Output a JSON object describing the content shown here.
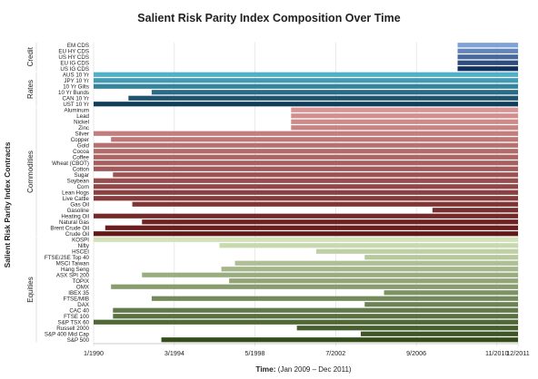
{
  "chart_data": {
    "type": "bar",
    "orientation": "horizontal-timeline",
    "title": "Salient Risk Parity Index Composition Over Time",
    "ylabel": "Salient Risk Parity Index Contracts",
    "xlabel_bold": "Time:",
    "xlabel_rest": " (Jan 2009 – Dec 2011)",
    "x_ticks": [
      "1/1990",
      "3/1994",
      "5/1998",
      "7/2002",
      "9/2006",
      "11/2010",
      "12/2011"
    ],
    "x_tick_values": [
      1990.0,
      1994.17,
      1998.33,
      2002.5,
      2006.67,
      2010.83,
      2011.92
    ],
    "xlim": [
      1990.0,
      2011.92
    ],
    "groups": [
      {
        "name": "Credit",
        "color_light": "#7ea1d8",
        "color_dark": "#13315e",
        "items": [
          {
            "label": "EM CDS",
            "start": 2008.8
          },
          {
            "label": "EU HY CDS",
            "start": 2008.8
          },
          {
            "label": "US HY CDS",
            "start": 2008.8
          },
          {
            "label": "EU IG CDS",
            "start": 2008.8
          },
          {
            "label": "US IG CDS",
            "start": 2008.8
          }
        ]
      },
      {
        "name": "Rates",
        "color_light": "#4fb1c8",
        "color_dark": "#113e5b",
        "items": [
          {
            "label": "AUS 10 Yr",
            "start": 1990.0
          },
          {
            "label": "JPY 10 Yr",
            "start": 1990.0
          },
          {
            "label": "10 Yr Gilts",
            "start": 1990.0
          },
          {
            "label": "10 Yr Bunds",
            "start": 1993.0
          },
          {
            "label": "CAN 10 Yr",
            "start": 1991.8
          },
          {
            "label": "UST 10 Yr",
            "start": 1990.0
          }
        ]
      },
      {
        "name": "Commodities",
        "color_light": "#d99595",
        "color_dark": "#641717",
        "items": [
          {
            "label": "Aluminum",
            "start": 2000.2
          },
          {
            "label": "Lead",
            "start": 2000.2
          },
          {
            "label": "Nickel",
            "start": 2000.2
          },
          {
            "label": "Zinc",
            "start": 2000.2
          },
          {
            "label": "Silver",
            "start": 1990.0
          },
          {
            "label": "Copper",
            "start": 1990.9
          },
          {
            "label": "Gold",
            "start": 1990.0
          },
          {
            "label": "Cocoa",
            "start": 1990.0
          },
          {
            "label": "Coffee",
            "start": 1990.0
          },
          {
            "label": "Wheat (CBOT)",
            "start": 1990.0
          },
          {
            "label": "Cotton",
            "start": 1990.0
          },
          {
            "label": "Sugar",
            "start": 1991.0
          },
          {
            "label": "Soybean",
            "start": 1990.0
          },
          {
            "label": "Corn",
            "start": 1990.0
          },
          {
            "label": "Lean Hogs",
            "start": 1990.0
          },
          {
            "label": "Live Cattle",
            "start": 1990.0
          },
          {
            "label": "Gas Oil",
            "start": 1992.0
          },
          {
            "label": "Gasoline",
            "start": 2007.5
          },
          {
            "label": "Heating Oil",
            "start": 1990.0
          },
          {
            "label": "Natural Gas",
            "start": 1992.5
          },
          {
            "label": "Brent Crude Oil",
            "start": 1990.6
          },
          {
            "label": "Crude Oil",
            "start": 1990.0
          }
        ]
      },
      {
        "name": "Equities",
        "color_light": "#d2e2b8",
        "color_dark": "#344d1b",
        "items": [
          {
            "label": "KOSPI",
            "start": 1990.0
          },
          {
            "label": "Nifty",
            "start": 1996.5
          },
          {
            "label": "HSCEI",
            "start": 2001.5
          },
          {
            "label": "FTSE/JSE Top 40",
            "start": 2004.0
          },
          {
            "label": "MSCI Taiwan",
            "start": 1997.3
          },
          {
            "label": "Hang Seng",
            "start": 1996.6
          },
          {
            "label": "ASX SPI 200",
            "start": 1992.5
          },
          {
            "label": "TOPIX",
            "start": 1997.0
          },
          {
            "label": "OMX",
            "start": 1990.9
          },
          {
            "label": "IBEX 35",
            "start": 2005.0
          },
          {
            "label": "FTSE/MIB",
            "start": 1993.0
          },
          {
            "label": "DAX",
            "start": 2004.0
          },
          {
            "label": "CAC 40",
            "start": 1991.0
          },
          {
            "label": "FTSE 100",
            "start": 1991.0
          },
          {
            "label": "S&P TSX 60",
            "start": 1990.0
          },
          {
            "label": "Russell 2000",
            "start": 2000.5
          },
          {
            "label": "S&P 400 Mid Cap",
            "start": 2003.8
          },
          {
            "label": "S&P 500",
            "start": 1993.5
          }
        ]
      }
    ],
    "end": 2011.92,
    "grid": true
  }
}
